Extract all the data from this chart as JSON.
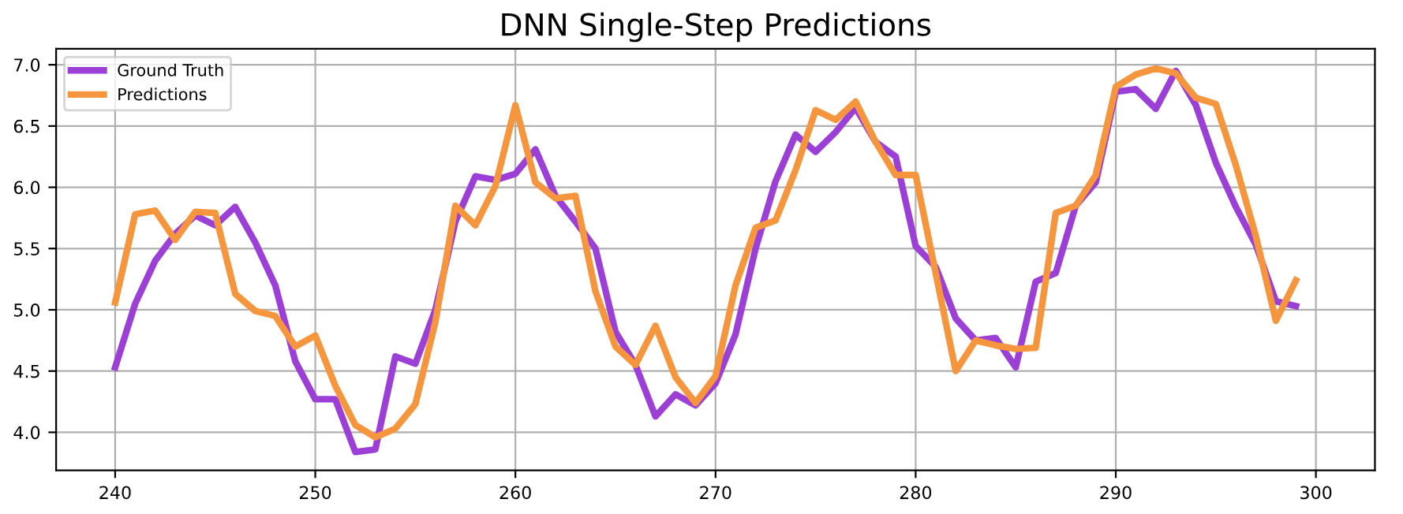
{
  "chart_data": {
    "type": "line",
    "title": "DNN Single-Step Predictions",
    "x": [
      240,
      241,
      242,
      243,
      244,
      245,
      246,
      247,
      248,
      249,
      250,
      251,
      252,
      253,
      254,
      255,
      256,
      257,
      258,
      259,
      260,
      261,
      262,
      263,
      264,
      265,
      266,
      267,
      268,
      269,
      270,
      271,
      272,
      273,
      274,
      275,
      276,
      277,
      278,
      279,
      280,
      281,
      282,
      283,
      284,
      285,
      286,
      287,
      288,
      289,
      290,
      291,
      292,
      293,
      294,
      295,
      296,
      297,
      298,
      299
    ],
    "series": [
      {
        "name": "Ground Truth",
        "color": "#9b3fd6",
        "values": [
          4.53,
          5.05,
          5.4,
          5.62,
          5.77,
          5.69,
          5.84,
          5.55,
          5.2,
          4.58,
          4.27,
          4.27,
          3.84,
          3.86,
          4.62,
          4.56,
          5.0,
          5.72,
          6.09,
          6.06,
          6.11,
          6.31,
          5.93,
          5.72,
          5.5,
          4.82,
          4.55,
          4.13,
          4.31,
          4.22,
          4.4,
          4.8,
          5.5,
          6.05,
          6.43,
          6.29,
          6.45,
          6.65,
          6.37,
          6.25,
          5.52,
          5.35,
          4.93,
          4.75,
          4.77,
          4.53,
          5.23,
          5.3,
          5.85,
          6.04,
          6.78,
          6.8,
          6.64,
          6.95,
          6.67,
          6.2,
          5.84,
          5.53,
          5.07,
          5.03
        ]
      },
      {
        "name": "Predictions",
        "color": "#f5963f",
        "values": [
          5.06,
          5.78,
          5.81,
          5.57,
          5.8,
          5.79,
          5.13,
          4.99,
          4.95,
          4.7,
          4.79,
          4.38,
          4.06,
          3.96,
          4.03,
          4.23,
          4.9,
          5.85,
          5.69,
          6.01,
          6.67,
          6.04,
          5.91,
          5.93,
          5.15,
          4.7,
          4.55,
          4.87,
          4.45,
          4.24,
          4.46,
          5.2,
          5.67,
          5.73,
          6.14,
          6.63,
          6.55,
          6.7,
          6.37,
          6.1,
          6.1,
          5.3,
          4.5,
          4.75,
          4.71,
          4.68,
          4.69,
          5.79,
          5.85,
          6.1,
          6.82,
          6.92,
          6.97,
          6.93,
          6.73,
          6.68,
          6.18,
          5.6,
          4.91,
          5.24
        ]
      }
    ],
    "xlim": [
      237.05,
      302.95
    ],
    "ylim": [
      3.69,
      7.13
    ],
    "xticks": [
      240,
      250,
      260,
      270,
      280,
      290,
      300
    ],
    "yticks": [
      {
        "value": 4,
        "label": "4.0"
      },
      {
        "value": 4.5,
        "label": "4.5"
      },
      {
        "value": 5,
        "label": "5.0"
      },
      {
        "value": 5.5,
        "label": "5.5"
      },
      {
        "value": 6,
        "label": "6.0"
      },
      {
        "value": 6.5,
        "label": "6.5"
      },
      {
        "value": 7,
        "label": "7.0"
      }
    ],
    "grid": true,
    "legend": "top left",
    "line_style": "solid",
    "marker": "none"
  }
}
